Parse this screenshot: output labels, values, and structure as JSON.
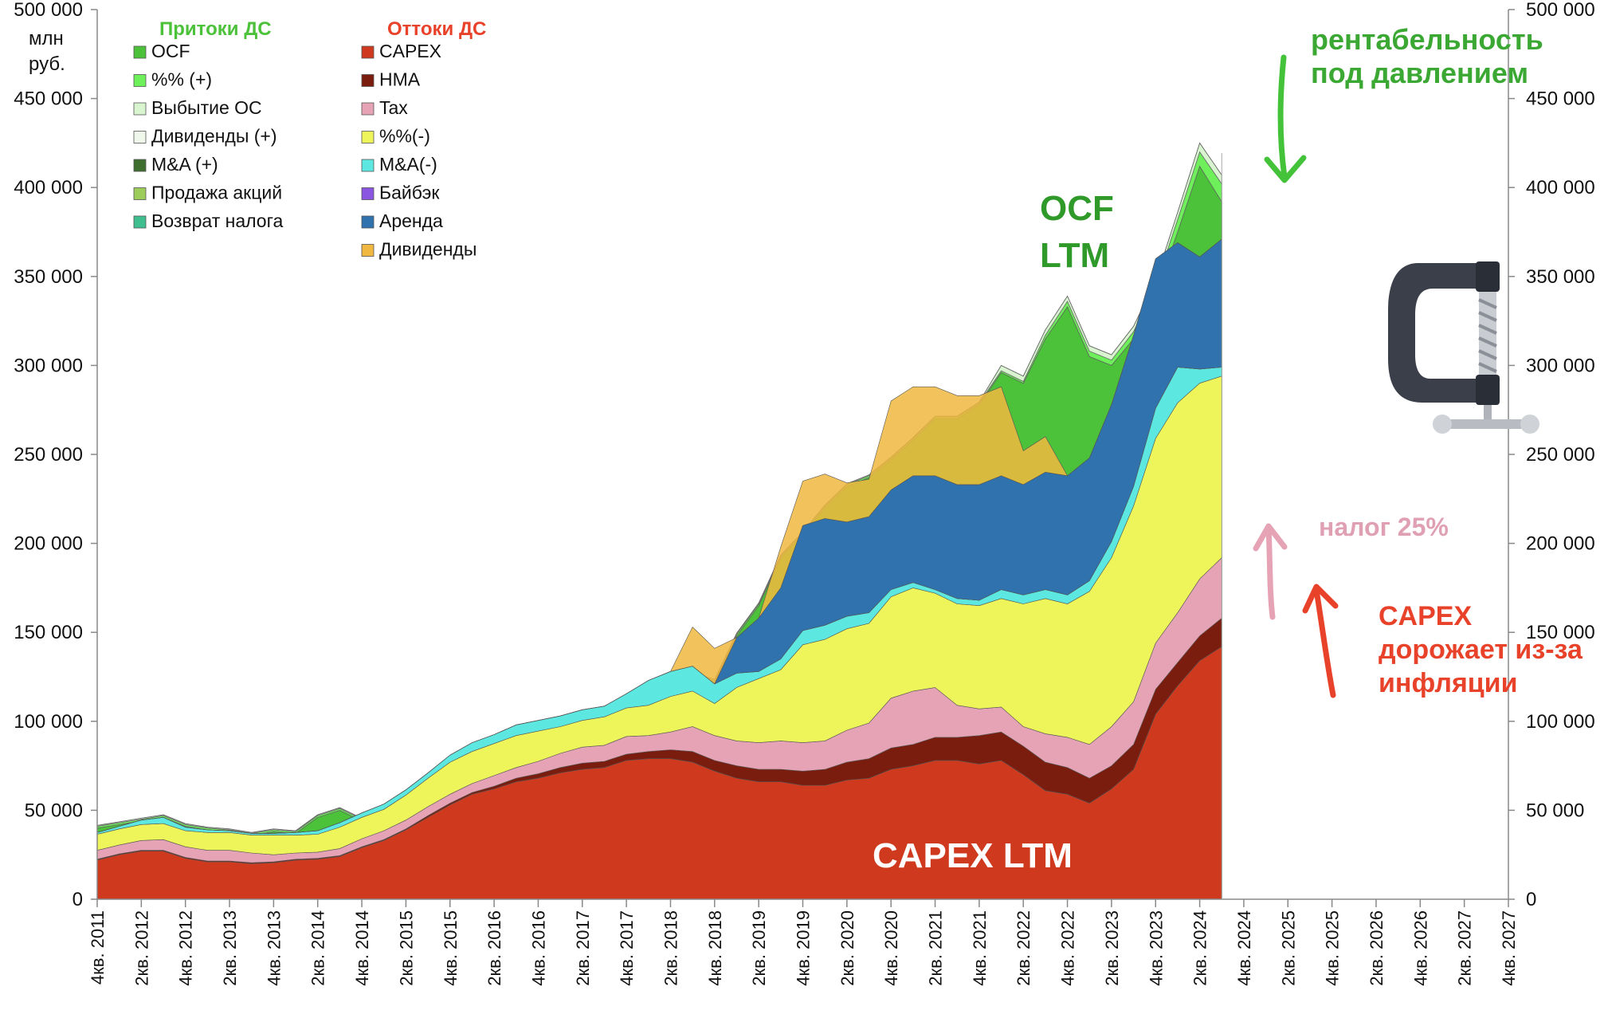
{
  "chart_data": {
    "type": "area",
    "stacked": true,
    "ylabel": "млн руб.",
    "ylim": [
      0,
      500000
    ],
    "y_ticks": [
      "0",
      "50 000",
      "100 000",
      "150 000",
      "200 000",
      "250 000",
      "300 000",
      "350 000",
      "400 000",
      "450 000",
      "500 000"
    ],
    "x_ticks": [
      "4кв. 2011",
      "2кв. 2012",
      "4кв. 2012",
      "2кв. 2013",
      "4кв. 2013",
      "2кв. 2014",
      "4кв. 2014",
      "2кв. 2015",
      "4кв. 2015",
      "2кв. 2016",
      "4кв. 2016",
      "2кв. 2017",
      "4кв. 2017",
      "2кв. 2018",
      "4кв. 2018",
      "2кв. 2019",
      "4кв. 2019",
      "2кв. 2020",
      "4кв. 2020",
      "2кв. 2021",
      "4кв. 2021",
      "2кв. 2022",
      "4кв. 2022",
      "2кв. 2023",
      "4кв. 2023",
      "2кв. 2024",
      "4кв. 2024",
      "2кв. 2025",
      "4кв. 2025",
      "2кв. 2026",
      "4кв. 2026",
      "2кв. 2027",
      "4кв. 2027"
    ],
    "legend_inflows": {
      "title": "Притоки ДС",
      "items": [
        {
          "label": "OCF",
          "color": "#4cc13a"
        },
        {
          "label": "%% (+)",
          "color": "#6ef05a"
        },
        {
          "label": "Выбытие ОС",
          "color": "#d8f5d0"
        },
        {
          "label": "Дивиденды (+)",
          "color": "#eef7ea"
        },
        {
          "label": "M&A (+)",
          "color": "#3e6f2e"
        },
        {
          "label": "Продажа акций",
          "color": "#9ccc5a"
        },
        {
          "label": "Возврат налога",
          "color": "#3fbf8f"
        }
      ]
    },
    "legend_outflows": {
      "title": "Оттоки ДС",
      "items": [
        {
          "label": "CAPEX",
          "color": "#cf3a1e"
        },
        {
          "label": "НМА",
          "color": "#7a1d0e"
        },
        {
          "label": "Tax",
          "color": "#e6a3b5"
        },
        {
          "label": "%%(-)",
          "color": "#eef55a"
        },
        {
          "label": "M&A(-)",
          "color": "#5ce8e0"
        },
        {
          "label": "Байбэк",
          "color": "#8a55e0"
        },
        {
          "label": "Аренда",
          "color": "#2f72ad"
        },
        {
          "label": "Дивиденды",
          "color": "#f0b840"
        }
      ]
    },
    "outflow_series": [
      {
        "name": "CAPEX",
        "color": "#cf3a1e",
        "values": [
          22000,
          25000,
          27000,
          27000,
          23000,
          21000,
          21000,
          20000,
          20500,
          22000,
          22500,
          24000,
          29000,
          33000,
          39000,
          46000,
          53000,
          59000,
          62000,
          66000,
          68000,
          71000,
          73000,
          74000,
          78000,
          79000,
          79000,
          77000,
          72000,
          68000,
          66000,
          66000,
          64000,
          64000,
          67000,
          68000,
          73000,
          75000,
          78000,
          78000,
          76000,
          78000,
          70000,
          61000,
          59000,
          54000,
          62000,
          73000,
          104000,
          120000,
          134000,
          142000
        ]
      },
      {
        "name": "НМА",
        "color": "#7a1d0e",
        "values": [
          500,
          500,
          500,
          500,
          500,
          500,
          500,
          500,
          500,
          500,
          500,
          500,
          500,
          500,
          500,
          1000,
          1000,
          1000,
          1500,
          2000,
          2500,
          3000,
          3500,
          3500,
          3500,
          4000,
          5000,
          6000,
          6000,
          7000,
          7000,
          7000,
          8000,
          9000,
          10000,
          11000,
          12000,
          12000,
          13000,
          13000,
          16000,
          16000,
          16000,
          16000,
          15000,
          14000,
          13000,
          14000,
          14000,
          13000,
          14000,
          16000
        ]
      },
      {
        "name": "Tax",
        "color": "#e6a3b5",
        "values": [
          5000,
          5000,
          5500,
          6000,
          6000,
          6000,
          6000,
          5500,
          4000,
          3500,
          3500,
          4000,
          4500,
          5000,
          5000,
          5000,
          5000,
          5000,
          6000,
          6000,
          7000,
          8000,
          9000,
          9000,
          10000,
          9000,
          10000,
          14000,
          14000,
          14000,
          15000,
          16000,
          16000,
          16000,
          18000,
          20000,
          28000,
          30000,
          28000,
          18000,
          15000,
          14000,
          11000,
          16000,
          17000,
          19000,
          22000,
          24000,
          26000,
          28000,
          32000,
          34000
        ]
      },
      {
        "name": "%%(-)",
        "color": "#eef55a",
        "values": [
          9000,
          9000,
          9000,
          9000,
          9000,
          10000,
          10000,
          10000,
          11000,
          10000,
          10000,
          12000,
          12000,
          12000,
          14000,
          16000,
          18000,
          18000,
          18000,
          18000,
          17000,
          15000,
          15000,
          16000,
          16000,
          17000,
          20000,
          20000,
          18000,
          30000,
          36000,
          40000,
          55000,
          57000,
          57000,
          56000,
          57000,
          58000,
          53000,
          57000,
          58000,
          61000,
          69000,
          76000,
          75000,
          86000,
          95000,
          110000,
          115000,
          118000,
          110000,
          102000
        ]
      },
      {
        "name": "M&A(-)",
        "color": "#5ce8e0",
        "values": [
          1000,
          1500,
          2500,
          3500,
          2000,
          1500,
          1000,
          1000,
          1000,
          1500,
          2000,
          2500,
          2500,
          3000,
          3000,
          3000,
          4000,
          5000,
          5000,
          6000,
          6000,
          6000,
          6000,
          6000,
          8000,
          14000,
          14000,
          14000,
          11000,
          8000,
          4000,
          6000,
          8000,
          8000,
          7000,
          6000,
          4000,
          3000,
          2000,
          3000,
          3000,
          5000,
          5000,
          5000,
          5000,
          6000,
          9000,
          11000,
          17000,
          20000,
          8000,
          5000
        ]
      },
      {
        "name": "Байбэк",
        "color": "#8a55e0",
        "values": [
          0,
          0,
          0,
          0,
          0,
          0,
          0,
          0,
          0,
          0,
          0,
          0,
          0,
          0,
          0,
          0,
          0,
          0,
          0,
          0,
          0,
          0,
          0,
          0,
          0,
          0,
          0,
          0,
          0,
          0,
          0,
          0,
          0,
          0,
          0,
          0,
          0,
          0,
          0,
          0,
          0,
          0,
          0,
          0,
          0,
          0,
          0,
          0,
          0,
          0,
          0,
          0
        ]
      },
      {
        "name": "Аренда",
        "color": "#2f72ad",
        "values": [
          0,
          0,
          0,
          0,
          0,
          0,
          0,
          0,
          0,
          0,
          0,
          0,
          0,
          0,
          0,
          0,
          0,
          0,
          0,
          0,
          0,
          0,
          0,
          0,
          0,
          0,
          0,
          0,
          0,
          20000,
          30000,
          40000,
          59000,
          60000,
          53000,
          54000,
          56000,
          60000,
          64000,
          64000,
          65000,
          64000,
          62000,
          66000,
          67000,
          69000,
          77000,
          85000,
          84000,
          70000,
          63000,
          72000
        ]
      },
      {
        "name": "Дивиденды",
        "color": "#f0b840",
        "values": [
          0,
          0,
          0,
          0,
          0,
          0,
          0,
          0,
          0,
          0,
          0,
          0,
          0,
          0,
          0,
          0,
          0,
          0,
          0,
          0,
          0,
          0,
          0,
          0,
          0,
          0,
          0,
          22000,
          20000,
          0,
          0,
          23000,
          25000,
          25000,
          22000,
          21000,
          50000,
          50000,
          50000,
          50000,
          50000,
          50000,
          19000,
          20000,
          0,
          0,
          0,
          0,
          0,
          0,
          0,
          0
        ]
      }
    ],
    "ocf_total_values": [
      40000,
      42000,
      44000,
      46000,
      41000,
      39000,
      38000,
      36000,
      38000,
      37000,
      46000,
      50000,
      44000,
      48000,
      54000,
      62000,
      70000,
      78000,
      84000,
      89000,
      92000,
      96000,
      100000,
      102000,
      104000,
      108000,
      117000,
      126000,
      122000,
      148000,
      165000,
      192000,
      205000,
      220000,
      232000,
      237000,
      247000,
      258000,
      270000,
      270000,
      278000,
      296000,
      290000,
      315000,
      333000,
      305000,
      300000,
      315000,
      340000,
      375000,
      412000,
      392000
    ],
    "inflow_extra_layers": [
      {
        "name": "%% (+)",
        "color": "#6ef05a",
        "values": [
          1000,
          1000,
          1000,
          1000,
          1000,
          1000,
          1000,
          1000,
          1000,
          1000,
          1000,
          1000,
          1000,
          1000,
          1000,
          1000,
          1000,
          1000,
          1000,
          1000,
          1000,
          1000,
          1000,
          1000,
          1000,
          1000,
          1000,
          1000,
          1000,
          1000,
          1000,
          1000,
          1000,
          1000,
          1000,
          1000,
          1000,
          1000,
          1000,
          1000,
          1000,
          1000,
          1000,
          2000,
          3000,
          3000,
          3000,
          4000,
          5000,
          7000,
          8000,
          10000
        ]
      },
      {
        "name": "Выбытие ОС",
        "color": "#d8f5d0",
        "values": [
          500,
          500,
          500,
          500,
          500,
          500,
          500,
          500,
          500,
          500,
          500,
          500,
          500,
          500,
          500,
          500,
          500,
          500,
          500,
          500,
          500,
          500,
          500,
          500,
          500,
          500,
          500,
          500,
          500,
          500,
          500,
          500,
          500,
          500,
          500,
          500,
          500,
          500,
          500,
          500,
          500,
          3000,
          3000,
          3000,
          3000,
          3000,
          3000,
          3000,
          3000,
          4000,
          5000,
          5000
        ]
      },
      {
        "name": "Дивиденды (+)",
        "color": "#eef7ea",
        "values": [
          0,
          0,
          0,
          0,
          0,
          0,
          0,
          0,
          0,
          0,
          0,
          0,
          0,
          0,
          0,
          0,
          0,
          0,
          0,
          0,
          0,
          0,
          0,
          0,
          0,
          0,
          0,
          0,
          0,
          0,
          0,
          0,
          0,
          0,
          0,
          0,
          0,
          0,
          0,
          0,
          0,
          0,
          0,
          0,
          0,
          0,
          0,
          0,
          0,
          0,
          0,
          0
        ]
      }
    ],
    "annotations": {
      "ocf_label_1": "OCF",
      "ocf_label_2": "LTM",
      "capex_label": "CAPEX LTM",
      "profit_1": "рентабельность",
      "profit_2": "под давлением",
      "tax_note": "налог 25%",
      "capex_note_1": "CAPEX",
      "capex_note_2": "дорожает из-за",
      "capex_note_3": "инфляции"
    },
    "annotation_colors": {
      "green": "#3aa832",
      "pink": "#e0a0b4",
      "red": "#e8432a",
      "ocf_text": "#2f9a2a"
    },
    "icons": [
      "clamp-icon"
    ]
  }
}
